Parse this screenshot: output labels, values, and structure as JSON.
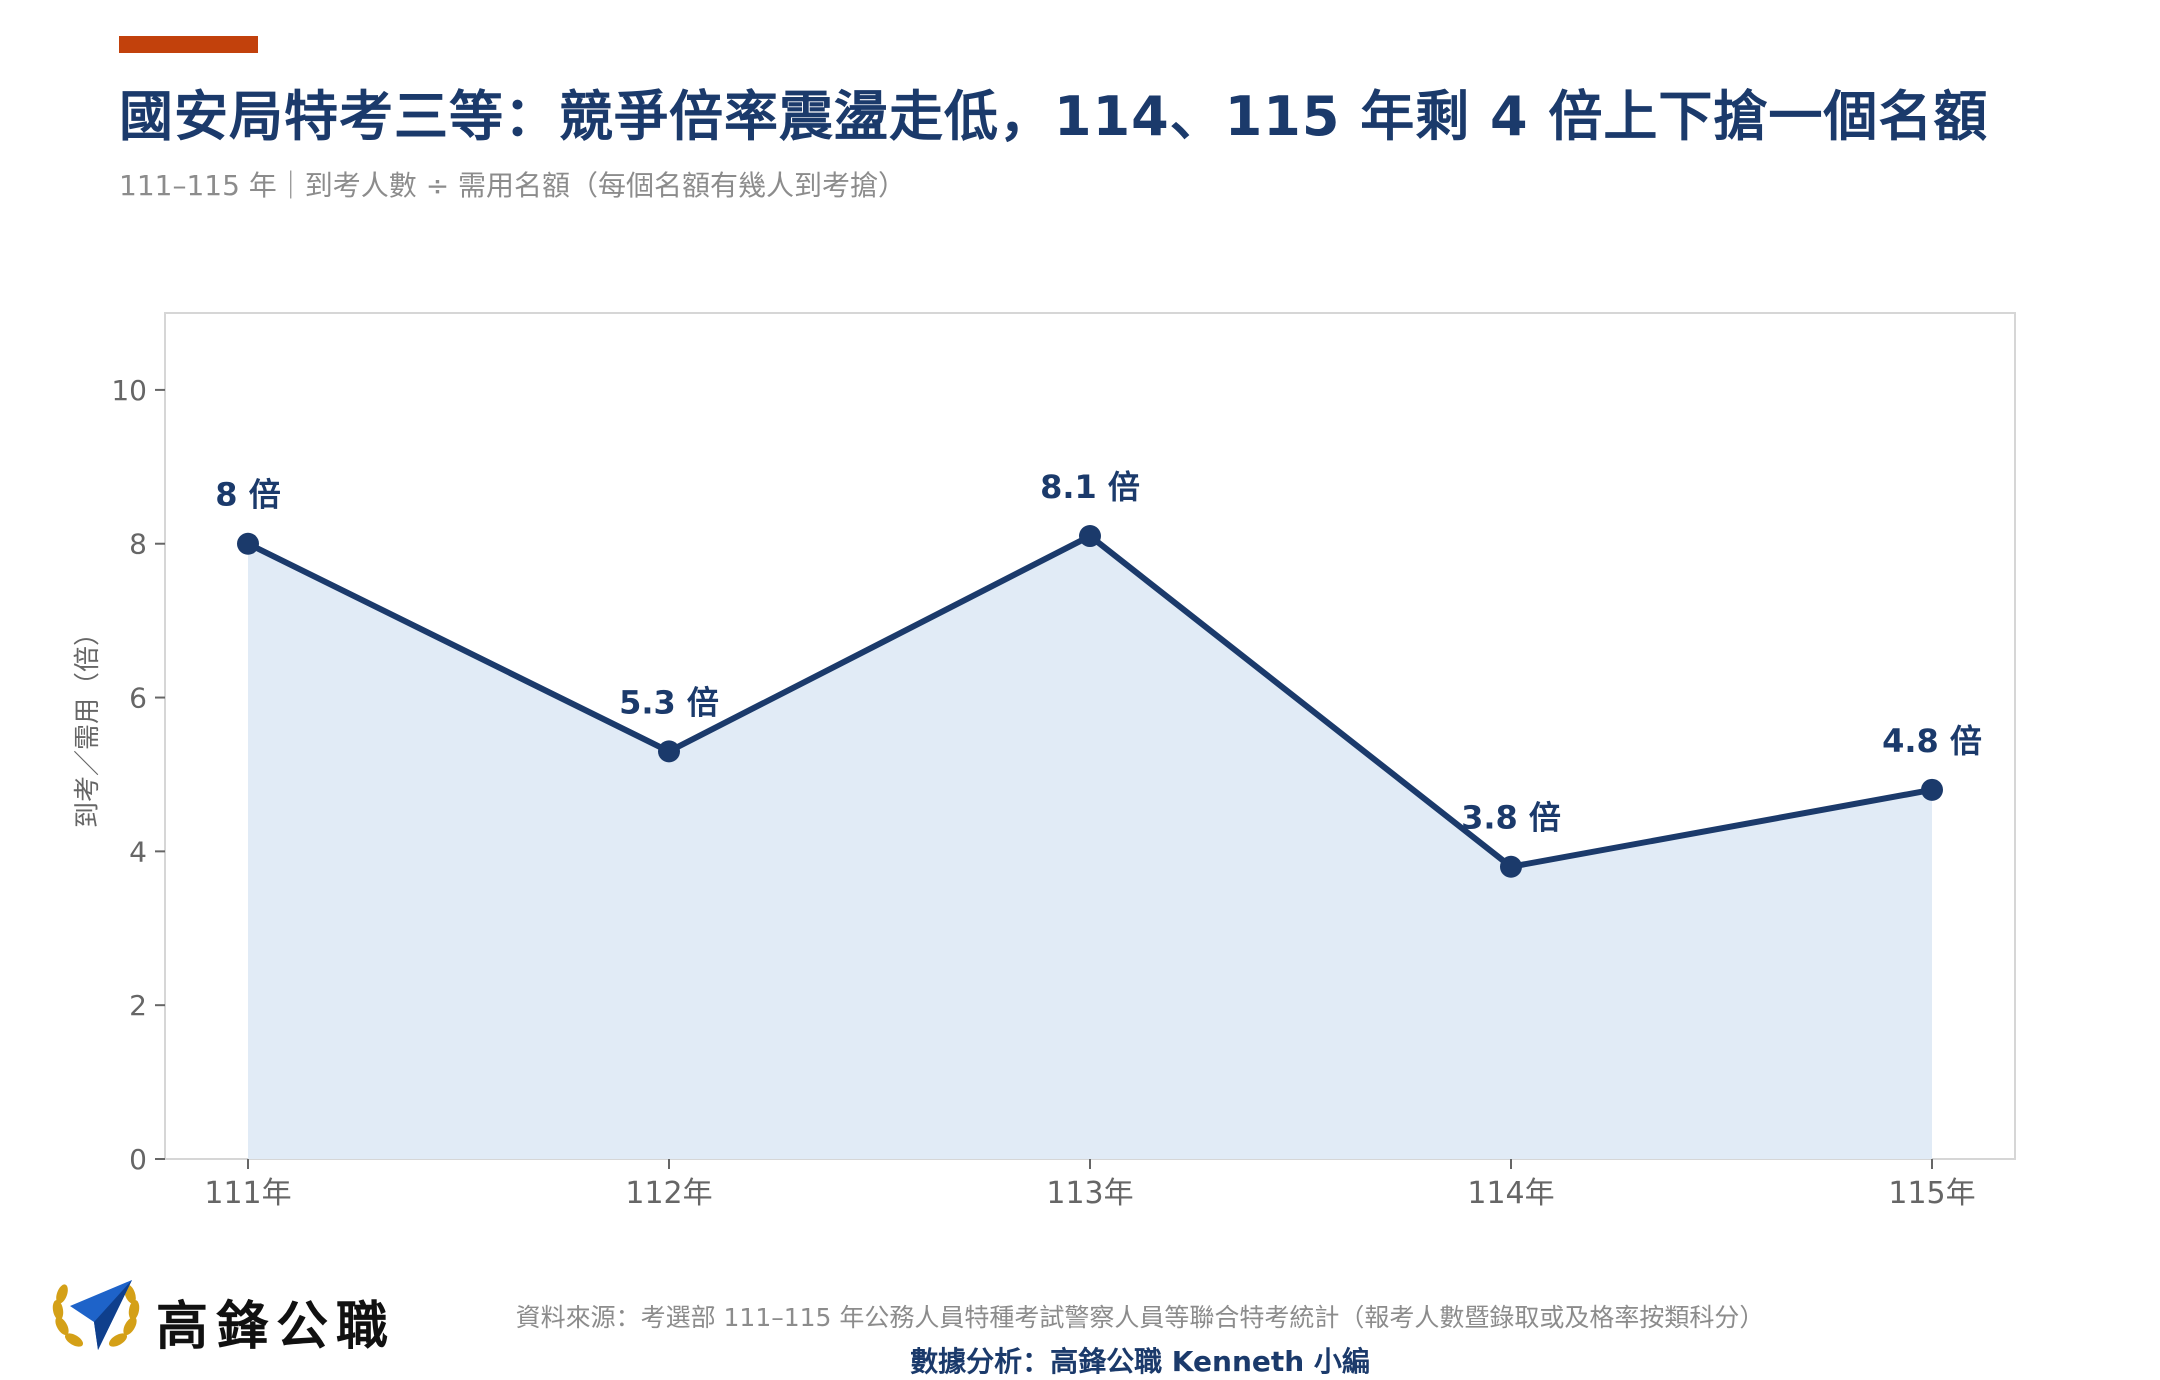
{
  "header": {
    "title": "國安局特考三等：競爭倍率震盪走低，114、115 年剩 4 倍上下搶一個名額",
    "subtitle": "111–115 年｜到考人數 ÷ 需用名額（每個名額有幾人到考搶）"
  },
  "colors": {
    "accent": "#c2410c",
    "line": "#1b3a6b",
    "area": "#e1ebf6",
    "axis": "#666666",
    "grid_border": "#d6d6d6"
  },
  "chart_data": {
    "type": "area",
    "categories": [
      "111年",
      "112年",
      "113年",
      "114年",
      "115年"
    ],
    "values": [
      8,
      5.3,
      8.1,
      3.8,
      4.8
    ],
    "data_labels": [
      "8 倍",
      "5.3 倍",
      "8.1 倍",
      "3.8 倍",
      "4.8 倍"
    ],
    "ylabel": "到考／需用（倍）",
    "ylim": [
      0,
      11
    ],
    "yticks": [
      0,
      2,
      4,
      6,
      8,
      10
    ],
    "grid": false,
    "markers": true
  },
  "footer": {
    "brand": "高鋒公職",
    "logo_icon": "paper-plane-laurel-icon",
    "source": "資料來源：考選部 111–115 年公務人員特種考試警察人員等聯合特考統計（報考人數暨錄取或及格率按類科分）",
    "analysis": "數據分析：高鋒公職 Kenneth 小編"
  }
}
